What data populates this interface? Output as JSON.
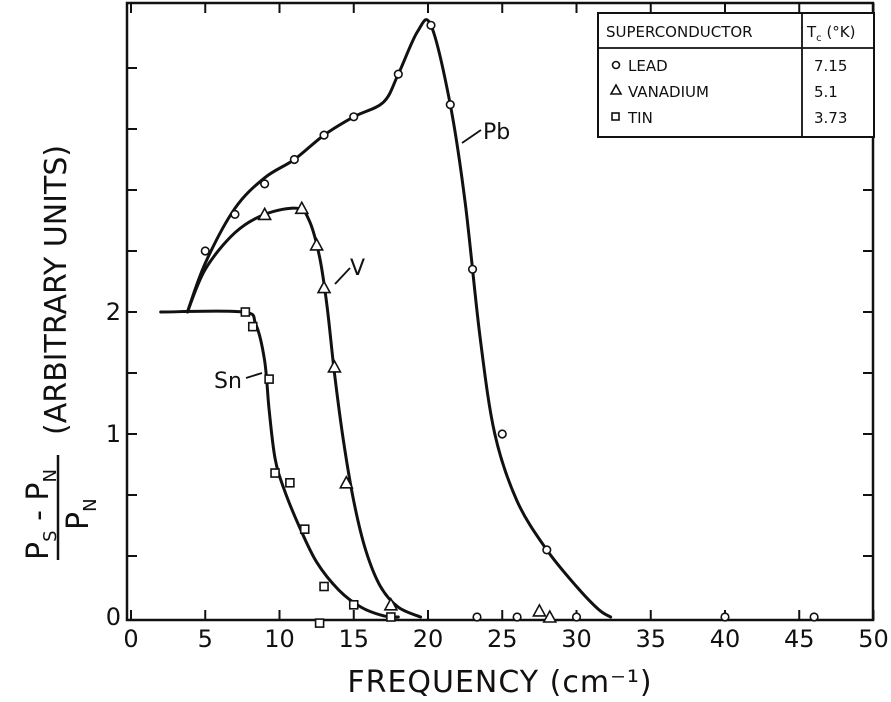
{
  "chart_data": {
    "type": "line",
    "xlabel": "FREQUENCY (cm⁻¹)",
    "ylabel": {
      "numerator": "P",
      "numerator_sub1": "S",
      "minus": " - P",
      "numerator_sub2": "N",
      "denominator": "P",
      "denominator_sub": "N",
      "units": "(ARBITRARY UNITS)"
    },
    "xlim": [
      0,
      50
    ],
    "ylim": [
      0,
      4.85
    ],
    "x_ticks": [
      "0",
      "5",
      "10",
      "15",
      "20",
      "25",
      "30",
      "35",
      "40",
      "45",
      "50"
    ],
    "x_tick_values": [
      0,
      5,
      10,
      15,
      20,
      25,
      30,
      35,
      40,
      45,
      50
    ],
    "y_ticks": [
      {
        "label": "0",
        "value": 0
      },
      {
        "label": "1",
        "value": 1.5
      },
      {
        "label": "2",
        "value": 2.5
      }
    ],
    "series": [
      {
        "name": "Pb",
        "marker": "circle",
        "curve": [
          [
            3.8,
            2.5
          ],
          [
            5,
            2.9
          ],
          [
            7,
            3.35
          ],
          [
            9,
            3.6
          ],
          [
            11,
            3.75
          ],
          [
            13,
            3.95
          ],
          [
            15,
            4.1
          ],
          [
            17,
            4.22
          ],
          [
            18,
            4.45
          ],
          [
            19.3,
            4.8
          ],
          [
            20.2,
            4.85
          ],
          [
            21.5,
            4.2
          ],
          [
            22.5,
            3.4
          ],
          [
            23.5,
            2.3
          ],
          [
            24.5,
            1.5
          ],
          [
            26,
            0.95
          ],
          [
            28,
            0.55
          ],
          [
            30,
            0.25
          ],
          [
            31.5,
            0.06
          ],
          [
            32.3,
            0
          ]
        ],
        "points": [
          [
            5,
            3.0
          ],
          [
            7,
            3.3
          ],
          [
            9,
            3.55
          ],
          [
            11,
            3.75
          ],
          [
            13,
            3.95
          ],
          [
            15,
            4.1
          ],
          [
            18,
            4.45
          ],
          [
            20.2,
            4.85
          ],
          [
            21.5,
            4.2
          ],
          [
            23,
            2.85
          ],
          [
            25,
            1.5
          ],
          [
            28,
            0.55
          ],
          [
            23.3,
            0
          ],
          [
            26,
            0
          ],
          [
            30,
            0
          ],
          [
            40,
            0
          ],
          [
            46,
            0
          ]
        ]
      },
      {
        "name": "V",
        "marker": "triangle",
        "curve": [
          [
            3.8,
            2.5
          ],
          [
            5,
            2.85
          ],
          [
            7,
            3.15
          ],
          [
            9,
            3.3
          ],
          [
            11.2,
            3.35
          ],
          [
            12,
            3.25
          ],
          [
            12.7,
            2.95
          ],
          [
            13.2,
            2.55
          ],
          [
            13.7,
            2.0
          ],
          [
            14.3,
            1.45
          ],
          [
            15,
            0.95
          ],
          [
            15.8,
            0.55
          ],
          [
            16.8,
            0.25
          ],
          [
            18,
            0.08
          ],
          [
            19.5,
            0
          ]
        ],
        "points": [
          [
            9,
            3.3
          ],
          [
            11.5,
            3.35
          ],
          [
            12.5,
            3.05
          ],
          [
            13,
            2.7
          ],
          [
            13.7,
            2.05
          ],
          [
            14.5,
            1.1
          ],
          [
            17.5,
            0.1
          ],
          [
            27.5,
            0.05
          ],
          [
            28.2,
            0
          ]
        ]
      },
      {
        "name": "Sn",
        "marker": "square",
        "curve": [
          [
            2,
            2.5
          ],
          [
            7.5,
            2.5
          ],
          [
            8.4,
            2.4
          ],
          [
            9,
            2.1
          ],
          [
            9.3,
            1.7
          ],
          [
            9.7,
            1.3
          ],
          [
            10.3,
            1.05
          ],
          [
            11.3,
            0.75
          ],
          [
            12.5,
            0.45
          ],
          [
            14,
            0.22
          ],
          [
            15.5,
            0.08
          ],
          [
            17,
            0.01
          ],
          [
            18,
            0
          ]
        ],
        "points": [
          [
            7.7,
            2.5
          ],
          [
            8.2,
            2.38
          ],
          [
            9.3,
            1.95
          ],
          [
            9.7,
            1.18
          ],
          [
            10.7,
            1.1
          ],
          [
            11.7,
            0.72
          ],
          [
            13,
            0.25
          ],
          [
            15,
            0.1
          ],
          [
            12.7,
            -0.05
          ],
          [
            17.5,
            0
          ]
        ]
      }
    ],
    "legend": {
      "position": "top-right",
      "header_material": "SUPERCONDUCTOR",
      "header_tc": "T",
      "header_tc_sub": "c",
      "header_tc_unit": " (°K)",
      "rows": [
        {
          "marker": "circle",
          "name": "LEAD",
          "tc": "7.15"
        },
        {
          "marker": "triangle",
          "name": "VANADIUM",
          "tc": "5.1"
        },
        {
          "marker": "square",
          "name": "TIN",
          "tc": "3.73"
        }
      ]
    },
    "grid": false
  }
}
